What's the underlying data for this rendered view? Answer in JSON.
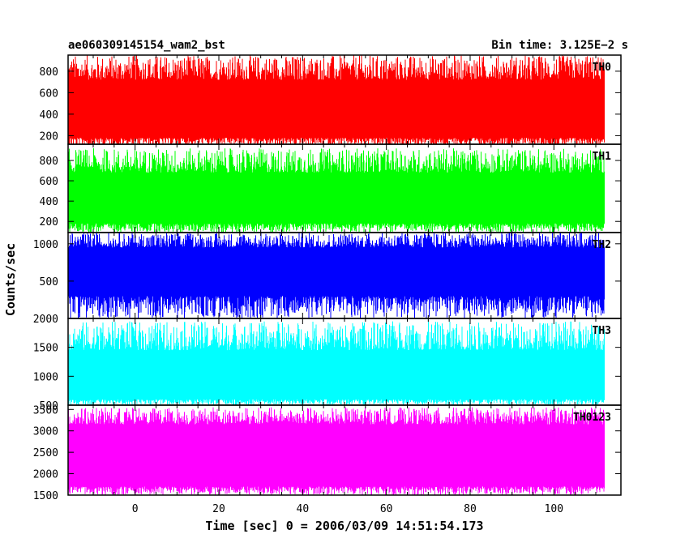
{
  "chart_data": {
    "type": "line",
    "title": "ae060309145154_wam2_bst",
    "bin_time": "Bin time: 3.125E−2 s",
    "xlabel": "Time [sec] 0 = 2006/03/09 14:51:54.173",
    "ylabel": "Counts/sec",
    "xlim": [
      -16,
      116
    ],
    "x_ticks": [
      0,
      20,
      40,
      60,
      80,
      100
    ],
    "x_range_data": [
      -16,
      112
    ],
    "panels": [
      {
        "name": "TH0",
        "color": "#ff0000",
        "ylim": [
          120,
          950
        ],
        "y_ticks": [
          200,
          400,
          600,
          800
        ],
        "mean": 430,
        "low": 180,
        "high": 720,
        "min": 100,
        "max": 950
      },
      {
        "name": "TH1",
        "color": "#00ff00",
        "ylim": [
          90,
          960
        ],
        "y_ticks": [
          200,
          400,
          600,
          800
        ],
        "mean": 420,
        "low": 180,
        "high": 680,
        "min": 90,
        "max": 920
      },
      {
        "name": "TH2",
        "color": "#0000ff",
        "ylim": [
          0,
          1150
        ],
        "y_ticks": [
          500,
          1000
        ],
        "mean": 640,
        "low": 300,
        "high": 950,
        "min": 0,
        "max": 1150
      },
      {
        "name": "TH3",
        "color": "#00ffff",
        "ylim": [
          500,
          2000
        ],
        "y_ticks": [
          500,
          1000,
          1500,
          2000
        ],
        "mean": 1050,
        "low": 600,
        "high": 1450,
        "min": 500,
        "max": 1950
      },
      {
        "name": "TH0123",
        "color": "#ff00ff",
        "ylim": [
          1500,
          3600
        ],
        "y_ticks": [
          1500,
          2000,
          2500,
          3000,
          3500
        ],
        "mean": 2450,
        "low": 1700,
        "high": 3150,
        "min": 1500,
        "max": 3550
      }
    ]
  }
}
